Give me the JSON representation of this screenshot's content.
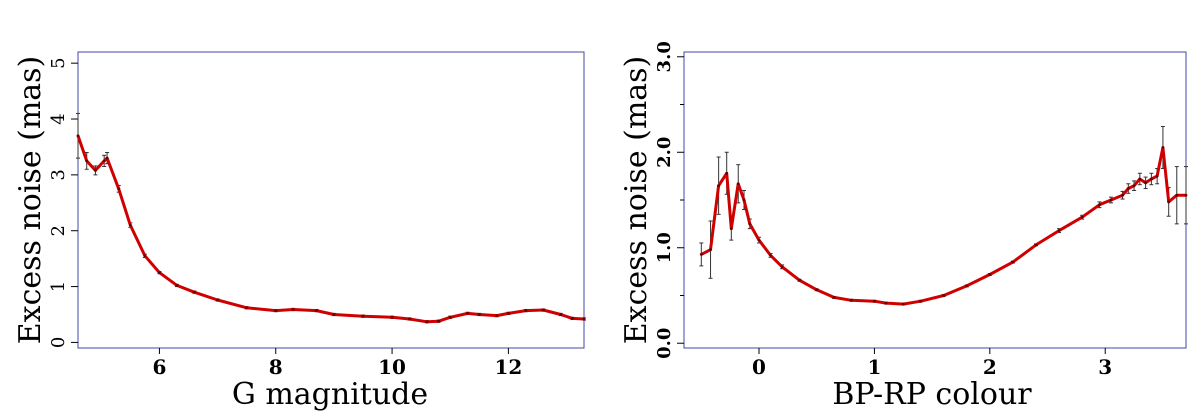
{
  "chart_data": [
    {
      "type": "line",
      "xlabel": "G magnitude",
      "ylabel": "Excess noise (mas)",
      "xlim": [
        4.6,
        13.3
      ],
      "ylim": [
        -0.1,
        5.2
      ],
      "xticks": [
        6,
        8,
        10,
        12
      ],
      "yticks": [
        0,
        1,
        2,
        3,
        4,
        5
      ],
      "xtick_labels": [
        "6",
        "8",
        "10",
        "12"
      ],
      "ytick_labels": [
        "0",
        "1",
        "2",
        "3",
        "4",
        "5"
      ],
      "series": [
        {
          "color": "#d00000",
          "x": [
            4.6,
            4.75,
            4.9,
            5.05,
            5.1,
            5.3,
            5.5,
            5.75,
            6.0,
            6.3,
            6.6,
            7.0,
            7.5,
            8.0,
            8.3,
            8.7,
            9.0,
            9.5,
            10.0,
            10.3,
            10.6,
            10.8,
            11.0,
            11.3,
            11.5,
            11.8,
            12.0,
            12.3,
            12.6,
            12.9,
            13.1,
            13.3
          ],
          "y": [
            3.7,
            3.25,
            3.08,
            3.25,
            3.3,
            2.75,
            2.1,
            1.55,
            1.25,
            1.02,
            0.9,
            0.76,
            0.62,
            0.57,
            0.59,
            0.57,
            0.5,
            0.47,
            0.45,
            0.42,
            0.37,
            0.38,
            0.45,
            0.52,
            0.5,
            0.48,
            0.52,
            0.57,
            0.58,
            0.5,
            0.43,
            0.42
          ],
          "err": [
            0.4,
            0.15,
            0.08,
            0.1,
            0.1,
            0.06,
            0.04,
            0.03,
            0.02,
            0.02,
            0.02,
            0.02,
            0.02,
            0.02,
            0.02,
            0.02,
            0.02,
            0.02,
            0.02,
            0.02,
            0.02,
            0.02,
            0.02,
            0.02,
            0.02,
            0.02,
            0.02,
            0.02,
            0.02,
            0.02,
            0.02,
            0.02
          ]
        }
      ]
    },
    {
      "type": "line",
      "xlabel": "BP-RP colour",
      "ylabel": "Excess noise (mas)",
      "xlim": [
        -0.65,
        3.7
      ],
      "ylim": [
        -0.05,
        3.05
      ],
      "xticks": [
        0,
        1,
        2,
        3
      ],
      "yticks": [
        0.0,
        1.0,
        2.0,
        3.0
      ],
      "xtick_labels": [
        "0",
        "1",
        "2",
        "3"
      ],
      "ytick_labels": [
        "0.0",
        "1.0",
        "2.0",
        "3.0"
      ],
      "series": [
        {
          "color": "#d00000",
          "x": [
            -0.5,
            -0.42,
            -0.35,
            -0.28,
            -0.24,
            -0.18,
            -0.13,
            -0.08,
            0.0,
            0.1,
            0.2,
            0.35,
            0.5,
            0.65,
            0.8,
            1.0,
            1.1,
            1.25,
            1.4,
            1.6,
            1.8,
            2.0,
            2.2,
            2.4,
            2.6,
            2.8,
            2.95,
            3.05,
            3.15,
            3.2,
            3.25,
            3.3,
            3.35,
            3.4,
            3.45,
            3.5,
            3.55,
            3.62,
            3.7
          ],
          "y": [
            0.93,
            0.98,
            1.65,
            1.78,
            1.2,
            1.67,
            1.5,
            1.25,
            1.08,
            0.92,
            0.8,
            0.66,
            0.56,
            0.48,
            0.45,
            0.44,
            0.42,
            0.41,
            0.44,
            0.5,
            0.6,
            0.72,
            0.85,
            1.03,
            1.18,
            1.32,
            1.45,
            1.5,
            1.55,
            1.62,
            1.65,
            1.72,
            1.68,
            1.72,
            1.75,
            2.05,
            1.48,
            1.55,
            1.55
          ],
          "err": [
            0.12,
            0.3,
            0.3,
            0.22,
            0.12,
            0.2,
            0.1,
            0.05,
            0.03,
            0.02,
            0.02,
            0.01,
            0.01,
            0.01,
            0.01,
            0.01,
            0.01,
            0.01,
            0.01,
            0.01,
            0.01,
            0.01,
            0.01,
            0.01,
            0.02,
            0.02,
            0.03,
            0.03,
            0.04,
            0.05,
            0.05,
            0.06,
            0.06,
            0.06,
            0.08,
            0.22,
            0.15,
            0.3,
            0.3
          ]
        }
      ]
    }
  ]
}
